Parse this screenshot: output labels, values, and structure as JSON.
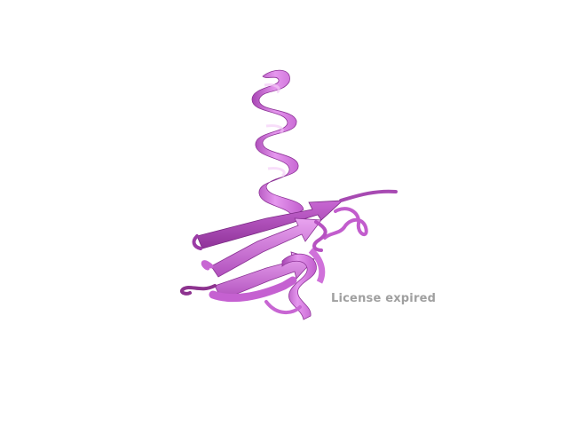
{
  "viewer": {
    "watermark_text": "License expired"
  },
  "structure": {
    "representation": "cartoon-ribbon",
    "color": "#d877e2",
    "color_dark": "#9c3aa8",
    "color_light": "#f0b9f4"
  }
}
